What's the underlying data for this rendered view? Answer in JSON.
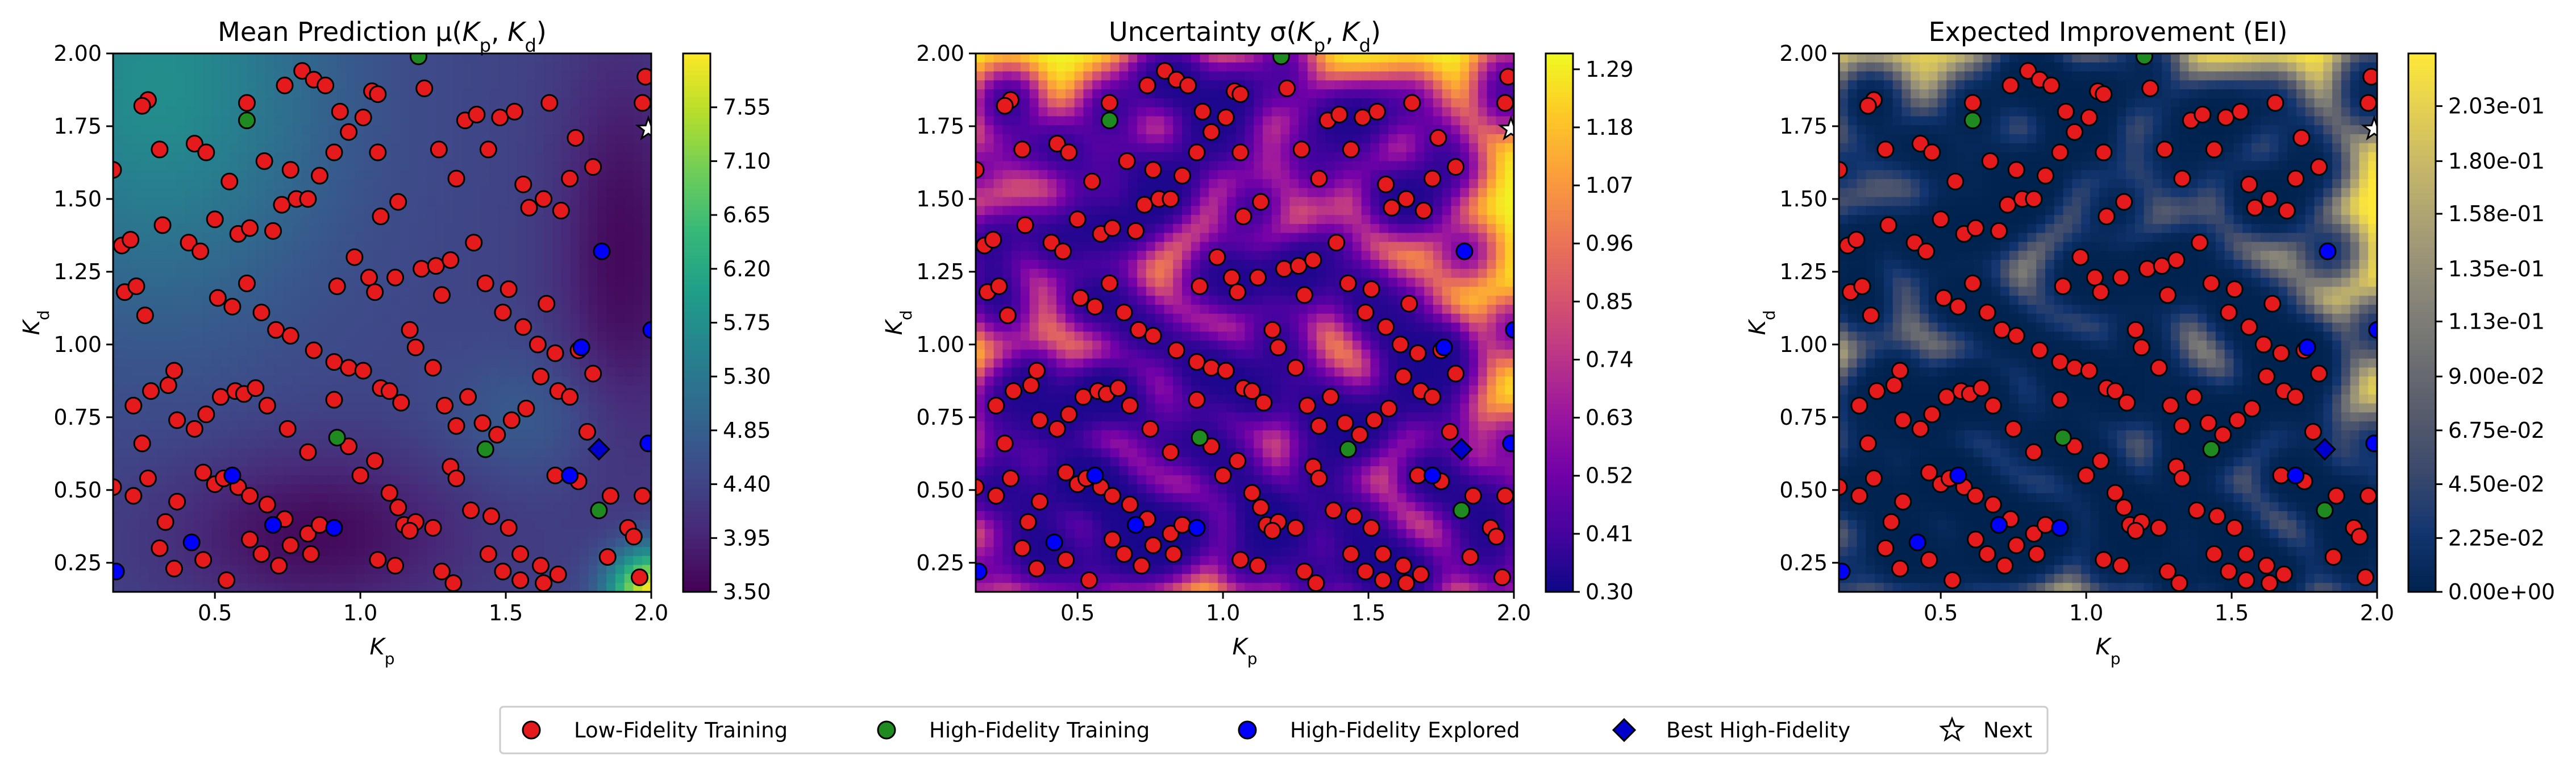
{
  "chart_data": [
    {
      "type": "heatmap",
      "title": "Mean Prediction μ(K_p, K_d)",
      "title_parts": [
        "Mean Prediction ",
        "μ(",
        "K",
        "p",
        ", ",
        "K",
        "d",
        ")"
      ],
      "xlabel": "K_p",
      "ylabel": "K_d",
      "xlim": [
        0.15,
        2.0
      ],
      "ylim": [
        0.15,
        2.0
      ],
      "xticks": [
        "0.5",
        "1.0",
        "1.5",
        "2.0"
      ],
      "yticks": [
        "0.25",
        "0.50",
        "0.75",
        "1.00",
        "1.25",
        "1.50",
        "1.75",
        "2.00"
      ],
      "colormap": "viridis",
      "colorbar_range": [
        3.5,
        8.0
      ],
      "colorbar_ticks": [
        "3.50",
        "3.95",
        "4.40",
        "4.85",
        "5.30",
        "5.75",
        "6.20",
        "6.65",
        "7.10",
        "7.55"
      ]
    },
    {
      "type": "heatmap",
      "title": "Uncertainty σ(K_p, K_d)",
      "title_parts": [
        "Uncertainty ",
        "σ(",
        "K",
        "p",
        ", ",
        "K",
        "d",
        ")"
      ],
      "xlabel": "K_p",
      "ylabel": "K_d",
      "xlim": [
        0.15,
        2.0
      ],
      "ylim": [
        0.15,
        2.0
      ],
      "xticks": [
        "0.5",
        "1.0",
        "1.5",
        "2.0"
      ],
      "yticks": [
        "0.25",
        "0.50",
        "0.75",
        "1.00",
        "1.25",
        "1.50",
        "1.75",
        "2.00"
      ],
      "colormap": "plasma",
      "colorbar_range": [
        0.3,
        1.32
      ],
      "colorbar_ticks": [
        "0.30",
        "0.41",
        "0.52",
        "0.63",
        "0.74",
        "0.85",
        "0.96",
        "1.07",
        "1.18",
        "1.29"
      ]
    },
    {
      "type": "heatmap",
      "title": "Expected Improvement (EI)",
      "title_parts": [
        "Expected Improvement (EI)"
      ],
      "xlabel": "K_p",
      "ylabel": "K_d",
      "xlim": [
        0.15,
        2.0
      ],
      "ylim": [
        0.15,
        2.0
      ],
      "xticks": [
        "0.5",
        "1.0",
        "1.5",
        "2.0"
      ],
      "yticks": [
        "0.25",
        "0.50",
        "0.75",
        "1.00",
        "1.25",
        "1.50",
        "1.75",
        "2.00"
      ],
      "colormap": "cividis",
      "colorbar_range": [
        0.0,
        0.225
      ],
      "colorbar_ticks": [
        "0.00e+00",
        "2.25e-02",
        "4.50e-02",
        "6.75e-02",
        "9.00e-02",
        "1.13e-01",
        "1.35e-01",
        "1.58e-01",
        "1.80e-01",
        "2.03e-01"
      ]
    }
  ],
  "points": {
    "low_fidelity": [
      [
        0.27,
        1.84
      ],
      [
        0.25,
        1.82
      ],
      [
        0.15,
        1.6
      ],
      [
        0.31,
        1.67
      ],
      [
        0.18,
        1.34
      ],
      [
        0.21,
        1.36
      ],
      [
        0.32,
        1.41
      ],
      [
        0.19,
        1.18
      ],
      [
        0.23,
        1.2
      ],
      [
        0.26,
        1.1
      ],
      [
        0.41,
        1.35
      ],
      [
        0.45,
        1.32
      ],
      [
        0.5,
        1.43
      ],
      [
        0.58,
        1.38
      ],
      [
        0.62,
        1.4
      ],
      [
        0.7,
        1.39
      ],
      [
        0.73,
        1.48
      ],
      [
        0.78,
        1.5
      ],
      [
        0.82,
        1.5
      ],
      [
        0.86,
        1.58
      ],
      [
        0.91,
        1.66
      ],
      [
        0.96,
        1.73
      ],
      [
        0.43,
        1.69
      ],
      [
        0.47,
        1.66
      ],
      [
        0.55,
        1.56
      ],
      [
        0.61,
        1.83
      ],
      [
        0.67,
        1.63
      ],
      [
        0.74,
        1.89
      ],
      [
        0.76,
        1.6
      ],
      [
        0.8,
        1.94
      ],
      [
        0.84,
        1.91
      ],
      [
        0.88,
        1.89
      ],
      [
        0.93,
        1.8
      ],
      [
        1.01,
        1.78
      ],
      [
        1.04,
        1.87
      ],
      [
        1.06,
        1.86
      ],
      [
        1.06,
        1.66
      ],
      [
        1.07,
        1.44
      ],
      [
        1.13,
        1.49
      ],
      [
        1.22,
        1.88
      ],
      [
        1.27,
        1.67
      ],
      [
        1.33,
        1.57
      ],
      [
        1.36,
        1.77
      ],
      [
        1.4,
        1.79
      ],
      [
        1.44,
        1.67
      ],
      [
        1.48,
        1.78
      ],
      [
        1.53,
        1.8
      ],
      [
        1.56,
        1.55
      ],
      [
        1.58,
        1.47
      ],
      [
        1.63,
        1.5
      ],
      [
        1.65,
        1.83
      ],
      [
        1.69,
        1.46
      ],
      [
        1.72,
        1.57
      ],
      [
        1.74,
        1.71
      ],
      [
        1.8,
        1.61
      ],
      [
        1.97,
        1.83
      ],
      [
        1.98,
        1.92
      ],
      [
        0.92,
        1.2
      ],
      [
        0.98,
        1.3
      ],
      [
        1.03,
        1.23
      ],
      [
        1.05,
        1.18
      ],
      [
        1.12,
        1.23
      ],
      [
        1.17,
        1.05
      ],
      [
        1.21,
        1.26
      ],
      [
        1.26,
        1.27
      ],
      [
        1.28,
        1.17
      ],
      [
        1.31,
        1.29
      ],
      [
        1.39,
        1.35
      ],
      [
        1.43,
        1.21
      ],
      [
        1.51,
        1.19
      ],
      [
        1.49,
        1.11
      ],
      [
        1.56,
        1.06
      ],
      [
        1.61,
        1.0
      ],
      [
        1.64,
        1.14
      ],
      [
        1.67,
        0.97
      ],
      [
        1.75,
        0.98
      ],
      [
        1.8,
        0.9
      ],
      [
        0.51,
        1.16
      ],
      [
        0.56,
        1.13
      ],
      [
        0.61,
        1.21
      ],
      [
        0.66,
        1.11
      ],
      [
        0.71,
        1.05
      ],
      [
        0.76,
        1.03
      ],
      [
        0.84,
        0.98
      ],
      [
        0.91,
        0.94
      ],
      [
        0.96,
        0.92
      ],
      [
        1.01,
        0.91
      ],
      [
        1.07,
        0.85
      ],
      [
        1.1,
        0.84
      ],
      [
        1.14,
        0.8
      ],
      [
        1.19,
        0.99
      ],
      [
        1.25,
        0.92
      ],
      [
        1.29,
        0.79
      ],
      [
        1.33,
        0.72
      ],
      [
        1.37,
        0.82
      ],
      [
        1.42,
        0.73
      ],
      [
        1.47,
        0.69
      ],
      [
        1.52,
        0.74
      ],
      [
        1.57,
        0.78
      ],
      [
        1.62,
        0.89
      ],
      [
        1.68,
        0.84
      ],
      [
        1.72,
        0.82
      ],
      [
        1.78,
        0.7
      ],
      [
        0.22,
        0.79
      ],
      [
        0.25,
        0.66
      ],
      [
        0.28,
        0.84
      ],
      [
        0.34,
        0.86
      ],
      [
        0.36,
        0.91
      ],
      [
        0.37,
        0.74
      ],
      [
        0.43,
        0.71
      ],
      [
        0.47,
        0.76
      ],
      [
        0.52,
        0.82
      ],
      [
        0.57,
        0.84
      ],
      [
        0.6,
        0.83
      ],
      [
        0.64,
        0.85
      ],
      [
        0.68,
        0.79
      ],
      [
        0.75,
        0.71
      ],
      [
        0.82,
        0.63
      ],
      [
        0.91,
        0.81
      ],
      [
        0.96,
        0.65
      ],
      [
        0.15,
        0.51
      ],
      [
        0.22,
        0.48
      ],
      [
        0.27,
        0.54
      ],
      [
        0.33,
        0.39
      ],
      [
        0.37,
        0.46
      ],
      [
        0.46,
        0.56
      ],
      [
        0.5,
        0.52
      ],
      [
        0.53,
        0.54
      ],
      [
        0.58,
        0.51
      ],
      [
        0.62,
        0.48
      ],
      [
        0.68,
        0.45
      ],
      [
        0.74,
        0.4
      ],
      [
        0.82,
        0.35
      ],
      [
        0.86,
        0.38
      ],
      [
        1.0,
        0.55
      ],
      [
        1.05,
        0.6
      ],
      [
        1.1,
        0.49
      ],
      [
        1.13,
        0.44
      ],
      [
        1.15,
        0.38
      ],
      [
        1.19,
        0.39
      ],
      [
        1.25,
        0.37
      ],
      [
        1.31,
        0.58
      ],
      [
        1.33,
        0.54
      ],
      [
        1.38,
        0.43
      ],
      [
        1.45,
        0.41
      ],
      [
        1.51,
        0.37
      ],
      [
        1.55,
        0.28
      ],
      [
        1.62,
        0.24
      ],
      [
        1.67,
        0.55
      ],
      [
        1.75,
        0.53
      ],
      [
        1.86,
        0.48
      ],
      [
        1.92,
        0.37
      ],
      [
        1.94,
        0.34
      ],
      [
        1.97,
        0.48
      ],
      [
        0.31,
        0.3
      ],
      [
        0.36,
        0.23
      ],
      [
        0.46,
        0.26
      ],
      [
        0.54,
        0.19
      ],
      [
        0.62,
        0.33
      ],
      [
        0.66,
        0.28
      ],
      [
        0.72,
        0.24
      ],
      [
        0.76,
        0.31
      ],
      [
        0.83,
        0.28
      ],
      [
        1.06,
        0.26
      ],
      [
        1.12,
        0.24
      ],
      [
        1.17,
        0.36
      ],
      [
        1.28,
        0.22
      ],
      [
        1.32,
        0.18
      ],
      [
        1.44,
        0.28
      ],
      [
        1.49,
        0.22
      ],
      [
        1.55,
        0.19
      ],
      [
        1.63,
        0.18
      ],
      [
        1.68,
        0.21
      ],
      [
        1.85,
        0.27
      ],
      [
        1.96,
        0.2
      ]
    ],
    "high_fidelity_training": [
      [
        0.61,
        1.77
      ],
      [
        1.2,
        1.99
      ],
      [
        0.92,
        0.68
      ],
      [
        1.43,
        0.64
      ],
      [
        1.82,
        0.43
      ]
    ],
    "high_fidelity_explored": [
      [
        0.16,
        0.22
      ],
      [
        0.42,
        0.32
      ],
      [
        0.56,
        0.55
      ],
      [
        0.7,
        0.38
      ],
      [
        0.91,
        0.37
      ],
      [
        1.72,
        0.55
      ],
      [
        1.83,
        1.32
      ],
      [
        1.76,
        0.99
      ],
      [
        2.0,
        1.05
      ],
      [
        1.99,
        0.66
      ]
    ],
    "best_high_fidelity": [
      [
        1.82,
        0.64
      ]
    ],
    "next": [
      [
        1.99,
        1.74
      ]
    ]
  },
  "legend": {
    "items": [
      {
        "label": "Low-Fidelity Training",
        "marker": "circle",
        "color": "#e41a1c"
      },
      {
        "label": "High-Fidelity Training",
        "marker": "circle",
        "color": "#1f8a20"
      },
      {
        "label": "High-Fidelity Explored",
        "marker": "circle",
        "color": "#0000ff"
      },
      {
        "label": "Best High-Fidelity",
        "marker": "diamond",
        "color": "#0000cc"
      },
      {
        "label": "Next",
        "marker": "star",
        "color": "#ffffff"
      }
    ]
  }
}
